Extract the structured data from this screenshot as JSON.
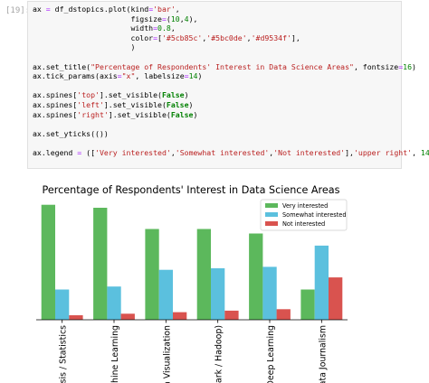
{
  "cell": {
    "prompt": "[19]:",
    "code_lines": [
      "ax = df_dstopics.plot(kind='bar',",
      "                      figsize=(10,4),",
      "                      width=0.8,",
      "                      color=['#5cb85c','#5bc0de','#d9534f'],",
      "                      )",
      "",
      "ax.set_title(\"Percentage of Respondents' Interest in Data Science Areas\", fontsize=16)",
      "ax.tick_params(axis=\"x\", labelsize=14)",
      "",
      "ax.spines['top'].set_visible(False)",
      "ax.spines['left'].set_visible(False)",
      "ax.spines['right'].set_visible(False)",
      "",
      "ax.set_yticks(())",
      "",
      "ax.legend = (['Very interested','Somewhat interested','Not interested'],'upper right', 14)"
    ]
  },
  "chart_data": {
    "type": "bar",
    "title": "Percentage of Respondents' Interest in Data Science Areas",
    "categories": [
      "Data Analysis / Statistics",
      "Machine Learning",
      "Data Visualization",
      "Big Data (Spark / Hadoop)",
      "Deep Learning",
      "Data Journalism"
    ],
    "visible_tick_labels": [
      "ysis / Statistics",
      "chine Learning",
      "a Visualization",
      "park / Hadoop)",
      "Deep Learning",
      "ata Journalism"
    ],
    "series": [
      {
        "name": "Very interested",
        "color": "#5cb85c",
        "values": [
          76,
          74,
          60,
          60,
          57,
          20
        ]
      },
      {
        "name": "Somewhat interested",
        "color": "#5bc0de",
        "values": [
          20,
          22,
          33,
          34,
          35,
          49
        ]
      },
      {
        "name": "Not interested",
        "color": "#d9534f",
        "values": [
          3,
          4,
          5,
          6,
          7,
          28
        ]
      }
    ],
    "ylim": [
      0,
      80
    ],
    "grid": false,
    "yticks_visible": false,
    "legend_position": "upper-right"
  }
}
